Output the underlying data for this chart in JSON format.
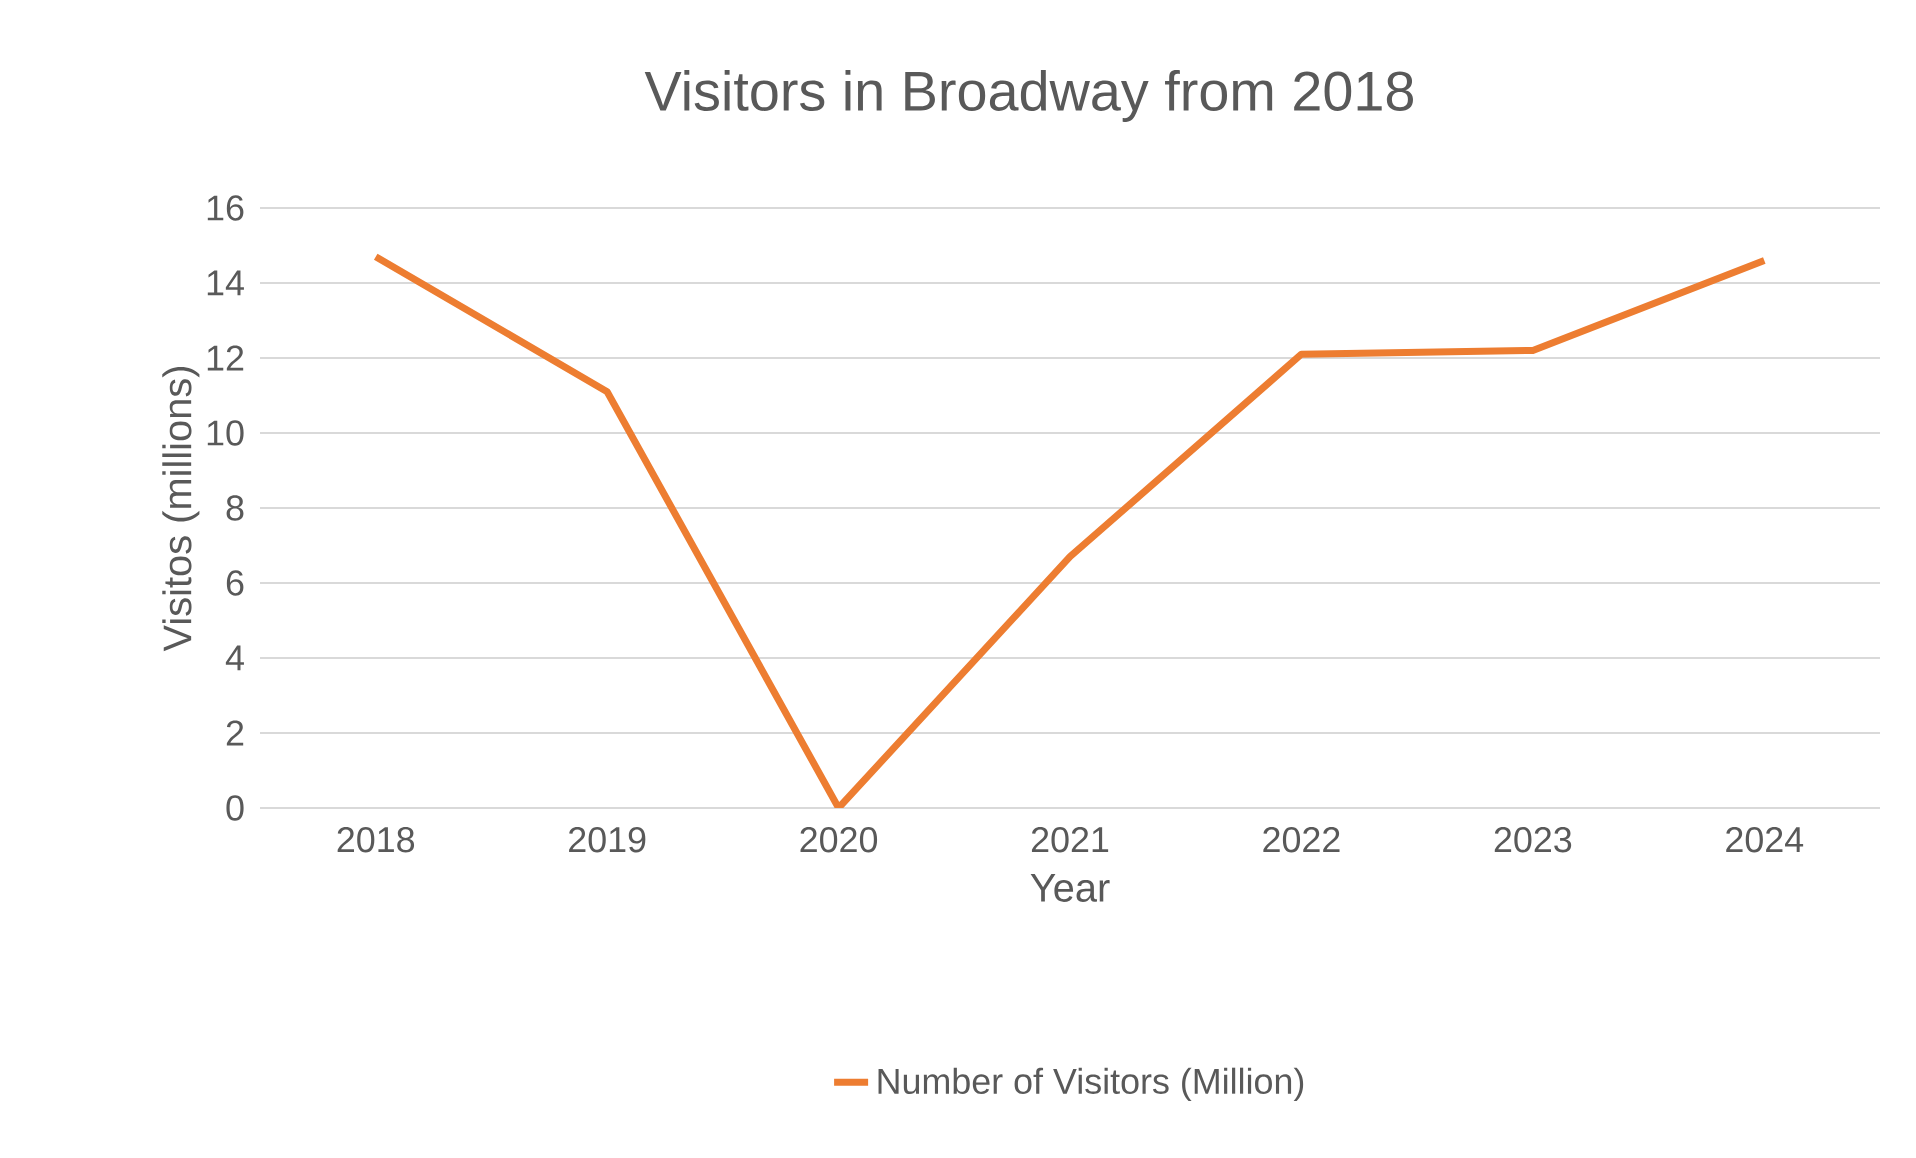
{
  "chart_data": {
    "type": "line",
    "title": "Visitors in Broadway from 2018",
    "xlabel": "Year",
    "ylabel": "Visitos (millions)",
    "categories": [
      "2018",
      "2019",
      "2020",
      "2021",
      "2022",
      "2023",
      "2024"
    ],
    "series": [
      {
        "name": "Number of Visitors (Million)",
        "color": "#ed7d31",
        "values": [
          14.7,
          11.1,
          0,
          6.7,
          12.1,
          12.2,
          14.6
        ]
      }
    ],
    "ylim": [
      0,
      16
    ],
    "yticks": [
      0,
      2,
      4,
      6,
      8,
      10,
      12,
      14,
      16
    ],
    "grid": "y",
    "legend": "bottom",
    "marker": "none",
    "line_style": "solid"
  }
}
